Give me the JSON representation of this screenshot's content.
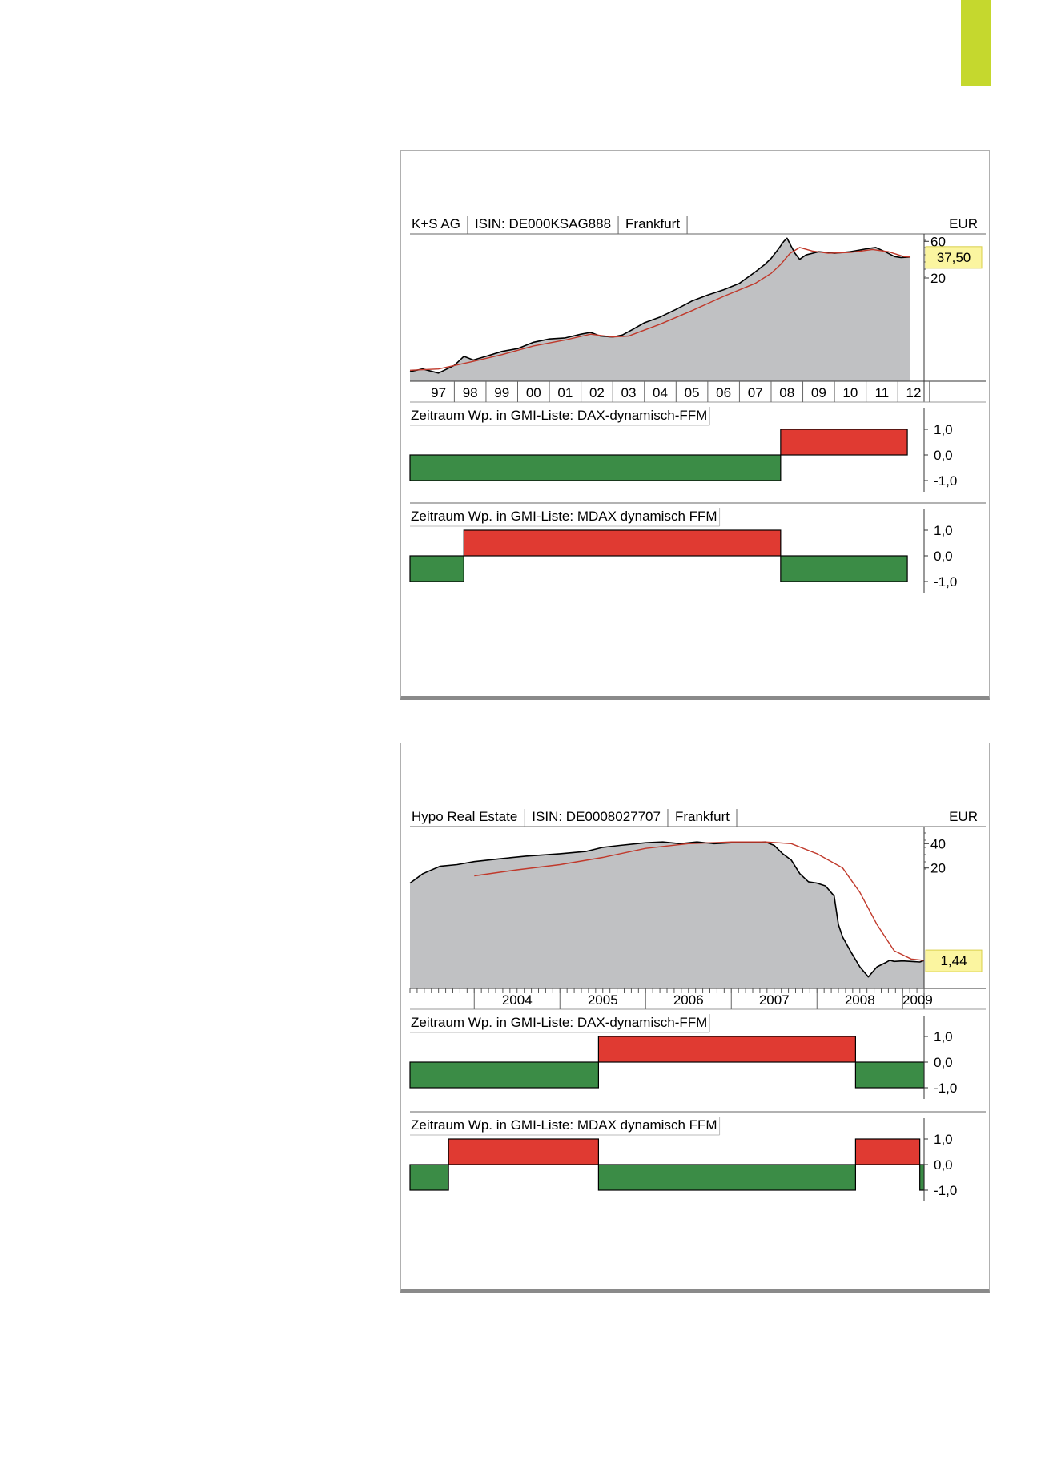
{
  "chart_data": [
    {
      "type": "area",
      "title": "K+S AG",
      "isin_label": "ISIN: DE000KSAG888",
      "exchange": "Frankfurt",
      "currency": "EUR",
      "scale": "log",
      "price_ticks": [
        "60",
        "20"
      ],
      "price_tick_values": [
        60,
        20
      ],
      "current_price_label": "37,50",
      "current_price": 37.5,
      "x_tick_labels": [
        "97",
        "98",
        "99",
        "00",
        "01",
        "02",
        "03",
        "04",
        "05",
        "06",
        "07",
        "08",
        "09",
        "10",
        "11",
        "12"
      ],
      "x_range_years": [
        1996.6,
        2012.5
      ],
      "price_series": {
        "x": [
          1996.6,
          1997.0,
          1997.5,
          1998.0,
          1998.3,
          1998.6,
          1999.0,
          1999.5,
          2000.0,
          2000.5,
          2001.0,
          2001.5,
          2002.0,
          2002.3,
          2002.6,
          2003.0,
          2003.3,
          2003.6,
          2004.0,
          2004.5,
          2005.0,
          2005.5,
          2006.0,
          2006.5,
          2007.0,
          2007.5,
          2007.8,
          2008.0,
          2008.2,
          2008.4,
          2008.5,
          2008.6,
          2008.75,
          2008.9,
          2009.1,
          2009.5,
          2010.0,
          2010.5,
          2011.0,
          2011.3,
          2011.6,
          2011.9,
          2012.1,
          2012.4
        ],
        "y": [
          1.2,
          1.3,
          1.15,
          1.45,
          1.9,
          1.7,
          1.9,
          2.2,
          2.4,
          2.9,
          3.2,
          3.3,
          3.7,
          3.9,
          3.5,
          3.4,
          3.6,
          4.2,
          5.2,
          6.2,
          7.8,
          10.0,
          12.0,
          14.0,
          17.0,
          24.0,
          30.0,
          36.0,
          46.0,
          60.0,
          66.0,
          55.0,
          42.0,
          35.0,
          40.0,
          44.0,
          42.0,
          44.0,
          48.0,
          50.0,
          44.0,
          38.0,
          37.0,
          37.5
        ]
      },
      "moving_average": {
        "x": [
          1996.6,
          1997.5,
          1998.5,
          1999.5,
          2000.5,
          2001.5,
          2002.3,
          2003.0,
          2003.5,
          2004.5,
          2005.5,
          2006.5,
          2007.5,
          2008.0,
          2008.3,
          2008.6,
          2008.9,
          2009.3,
          2009.8,
          2010.5,
          2011.2,
          2011.7,
          2012.2,
          2012.4
        ],
        "y": [
          1.25,
          1.3,
          1.6,
          2.0,
          2.6,
          3.1,
          3.7,
          3.4,
          3.5,
          5.0,
          7.5,
          11.5,
          17.0,
          23.0,
          30.0,
          42.0,
          50.0,
          45.0,
          42.0,
          43.0,
          47.0,
          44.0,
          38.0,
          37.5
        ]
      },
      "indicators": [
        {
          "label": "Zeitraum Wp. in GMI-Liste: DAX-dynamisch-FFM",
          "y_ticks": [
            "1,0",
            "0,0",
            "-1,0"
          ],
          "segments": [
            {
              "from": 1996.6,
              "to": 2008.3,
              "value": -1
            },
            {
              "from": 2008.3,
              "to": 2012.3,
              "value": 1
            }
          ]
        },
        {
          "label": "Zeitraum Wp. in GMI-Liste: MDAX dynamisch FFM",
          "y_ticks": [
            "1,0",
            "0,0",
            "-1,0"
          ],
          "segments": [
            {
              "from": 1996.6,
              "to": 1998.3,
              "value": -1
            },
            {
              "from": 1998.3,
              "to": 2008.3,
              "value": 1
            },
            {
              "from": 2008.3,
              "to": 2012.3,
              "value": -1
            }
          ]
        }
      ],
      "colors": {
        "area": "#c0c1c3",
        "price": "#000000",
        "average": "#c0392b",
        "positive": "#e03a32",
        "negative": "#3b8c46",
        "price_badge": "#fbf5a0"
      }
    },
    {
      "type": "area",
      "title": "Hypo Real Estate",
      "isin_label": "ISIN: DE0008027707",
      "exchange": "Frankfurt",
      "currency": "EUR",
      "scale": "log",
      "price_ticks": [
        "40",
        "20"
      ],
      "price_tick_values": [
        40,
        20
      ],
      "current_price_label": "1,44",
      "current_price": 1.44,
      "x_tick_labels": [
        "2004",
        "2005",
        "2006",
        "2007",
        "2008",
        "2009"
      ],
      "x_range_years": [
        2003.25,
        2009.25
      ],
      "price_series": {
        "x": [
          2003.25,
          2003.4,
          2003.6,
          2003.8,
          2004.0,
          2004.3,
          2004.6,
          2005.0,
          2005.3,
          2005.5,
          2005.7,
          2006.0,
          2006.2,
          2006.4,
          2006.6,
          2006.8,
          2007.0,
          2007.2,
          2007.4,
          2007.5,
          2007.6,
          2007.7,
          2007.8,
          2007.9,
          2008.0,
          2008.1,
          2008.2,
          2008.25,
          2008.3,
          2008.4,
          2008.5,
          2008.6,
          2008.7,
          2008.8,
          2008.85,
          2008.9,
          2009.0,
          2009.1,
          2009.2,
          2009.25
        ],
        "y": [
          13.0,
          17.0,
          21.0,
          22.0,
          24.0,
          26.0,
          28.0,
          30.0,
          32.0,
          36.0,
          38.0,
          41.0,
          42.0,
          40.0,
          42.0,
          40.0,
          41.0,
          41.5,
          42.0,
          38.0,
          30.0,
          25.0,
          17.0,
          13.5,
          13.0,
          12.0,
          9.0,
          4.0,
          2.8,
          1.8,
          1.2,
          0.9,
          1.2,
          1.35,
          1.45,
          1.4,
          1.42,
          1.4,
          1.38,
          1.44
        ]
      },
      "moving_average": {
        "x": [
          2004.0,
          2004.5,
          2005.0,
          2005.5,
          2006.0,
          2006.5,
          2007.0,
          2007.4,
          2007.7,
          2008.0,
          2008.3,
          2008.5,
          2008.7,
          2008.9,
          2009.1,
          2009.25
        ],
        "y": [
          16.0,
          19.0,
          22.0,
          27.0,
          35.0,
          40.0,
          42.0,
          42.0,
          40.0,
          30.0,
          20.0,
          10.0,
          4.0,
          1.9,
          1.5,
          1.44
        ]
      },
      "indicators": [
        {
          "label": "Zeitraum Wp. in GMI-Liste: DAX-dynamisch-FFM",
          "y_ticks": [
            "1,0",
            "0,0",
            "-1,0"
          ],
          "segments": [
            {
              "from": 2003.25,
              "to": 2005.45,
              "value": -1
            },
            {
              "from": 2005.45,
              "to": 2008.45,
              "value": 1
            },
            {
              "from": 2008.45,
              "to": 2009.25,
              "value": -1
            }
          ]
        },
        {
          "label": "Zeitraum Wp. in GMI-Liste: MDAX dynamisch FFM",
          "y_ticks": [
            "1,0",
            "0,0",
            "-1,0"
          ],
          "segments": [
            {
              "from": 2003.25,
              "to": 2003.7,
              "value": -1
            },
            {
              "from": 2003.7,
              "to": 2005.45,
              "value": 1
            },
            {
              "from": 2005.45,
              "to": 2008.45,
              "value": -1
            },
            {
              "from": 2008.45,
              "to": 2009.2,
              "value": 1
            },
            {
              "from": 2009.2,
              "to": 2009.25,
              "value": -1
            }
          ]
        }
      ],
      "colors": {
        "area": "#c0c1c3",
        "price": "#000000",
        "average": "#c0392b",
        "positive": "#e03a32",
        "negative": "#3b8c46",
        "price_badge": "#fbf5a0"
      }
    }
  ]
}
